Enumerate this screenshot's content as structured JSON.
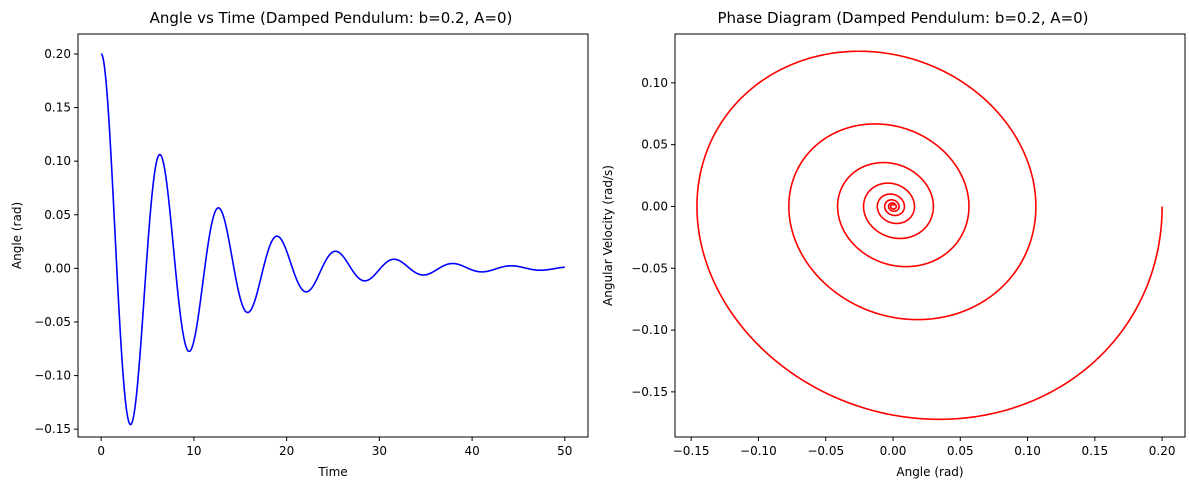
{
  "chart_data": [
    {
      "type": "line",
      "title": "Angle vs Time (Damped Pendulum: b=0.2, A=0)",
      "xlabel": "Time",
      "ylabel": "Angle (rad)",
      "xlim": [
        -2.5,
        52.5
      ],
      "ylim": [
        -0.1573,
        0.2186
      ],
      "x_ticks": [
        0,
        10,
        20,
        30,
        40,
        50
      ],
      "x_tick_labels": [
        "0",
        "10",
        "20",
        "30",
        "40",
        "50"
      ],
      "y_ticks": [
        -0.15,
        -0.1,
        -0.05,
        0.0,
        0.05,
        0.1,
        0.15,
        0.2
      ],
      "y_tick_labels": [
        "−0.15",
        "−0.10",
        "−0.05",
        "0.00",
        "0.05",
        "0.10",
        "0.15",
        "0.20"
      ],
      "grid": false,
      "color": "#0000ff",
      "series": [
        {
          "model": {
            "theta0": 0.2,
            "omega0": 0.0,
            "b": 0.2,
            "A": 0,
            "t_start": 0,
            "t_end": 50
          }
        }
      ]
    },
    {
      "type": "line",
      "title": "Phase Diagram (Damped Pendulum: b=0.2, A=0)",
      "xlabel": "Angle (rad)",
      "ylabel": "Angular Velocity (rad/s)",
      "xlim": [
        -0.162,
        0.217
      ],
      "ylim": [
        -0.1865,
        0.1395
      ],
      "x_ticks": [
        -0.15,
        -0.1,
        -0.05,
        0.0,
        0.05,
        0.1,
        0.15,
        0.2
      ],
      "x_tick_labels": [
        "−0.15",
        "−0.10",
        "−0.05",
        "0.00",
        "0.05",
        "0.10",
        "0.15",
        "0.20"
      ],
      "y_ticks": [
        -0.15,
        -0.1,
        -0.05,
        0.0,
        0.05,
        0.1
      ],
      "y_tick_labels": [
        "−0.15",
        "−0.10",
        "−0.05",
        "0.00",
        "0.05",
        "0.10"
      ],
      "grid": false,
      "color": "#ff0000",
      "series": [
        {
          "model": {
            "theta0": 0.2,
            "omega0": 0.0,
            "b": 0.2,
            "A": 0,
            "t_start": 0,
            "t_end": 50
          }
        }
      ]
    }
  ]
}
